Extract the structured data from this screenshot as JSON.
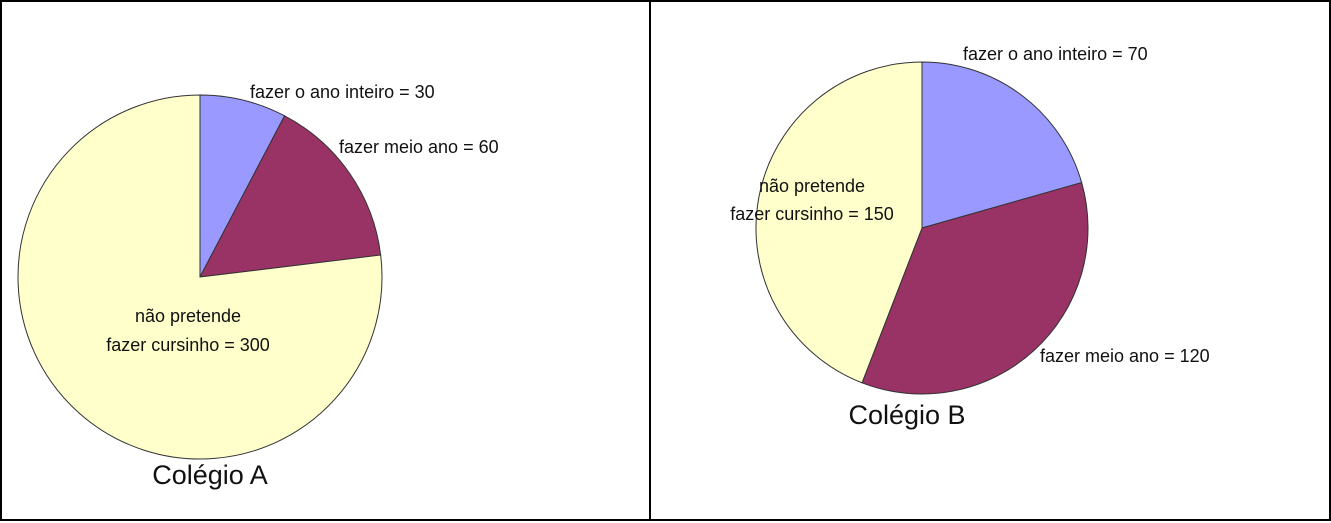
{
  "chart_data": [
    {
      "type": "pie",
      "title": "Colégio A",
      "slices": [
        {
          "label_lines": [
            "fazer o ano inteiro = 30"
          ],
          "value": 30,
          "color": "#9999FF"
        },
        {
          "label_lines": [
            "fazer meio ano = 60"
          ],
          "value": 60,
          "color": "#993366"
        },
        {
          "label_lines": [
            "não pretende",
            "fazer cursinho = 300"
          ],
          "value": 300,
          "color": "#FFFFCC"
        }
      ]
    },
    {
      "type": "pie",
      "title": "Colégio B",
      "slices": [
        {
          "label_lines": [
            "fazer o ano inteiro = 70"
          ],
          "value": 70,
          "color": "#9999FF"
        },
        {
          "label_lines": [
            "fazer meio ano = 120"
          ],
          "value": 120,
          "color": "#993366"
        },
        {
          "label_lines": [
            "não pretende",
            "fazer cursinho = 150"
          ],
          "value": 150,
          "color": "#FFFFCC"
        }
      ]
    }
  ]
}
